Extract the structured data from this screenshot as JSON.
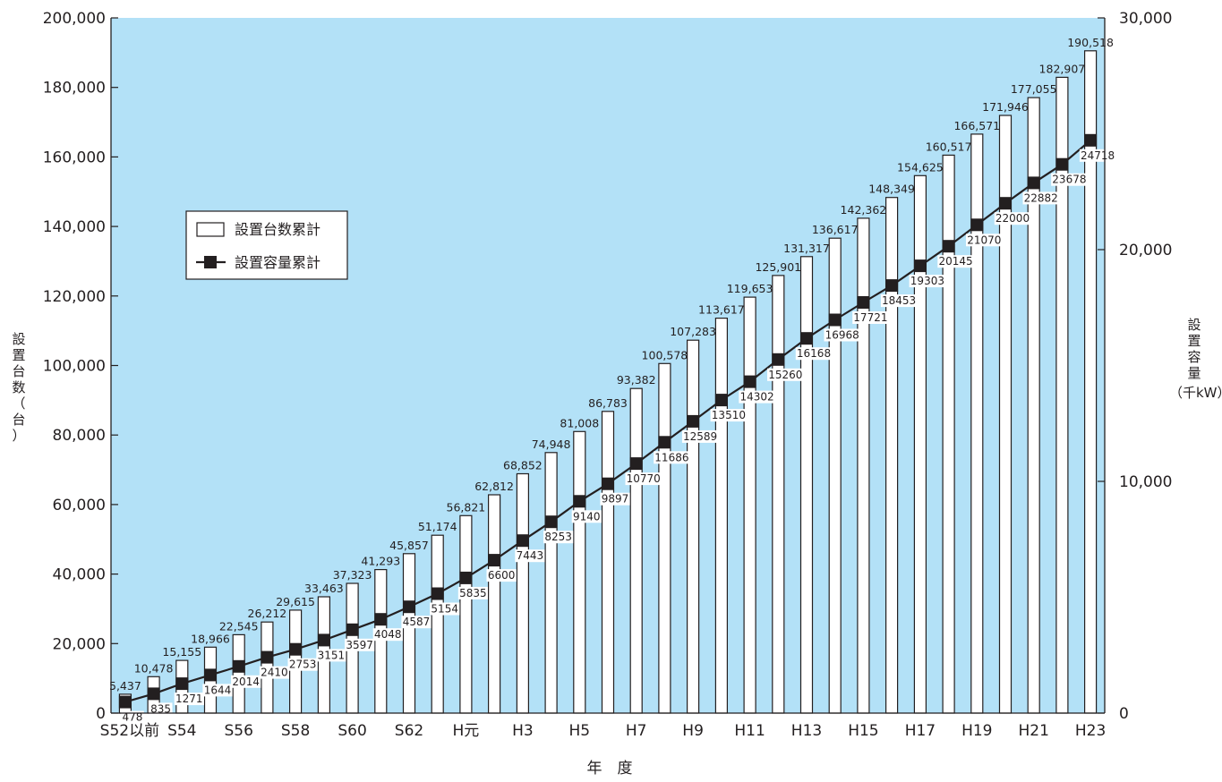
{
  "chart_data": {
    "type": "bar",
    "title": "",
    "xlabel": "年　度",
    "ylabel_left": "設置台数（台）",
    "ylabel_right": "設置容量（千kW）",
    "ylim_left": [
      0,
      200000
    ],
    "ylim_right": [
      0,
      30000
    ],
    "yticks_left": [
      "0",
      "20,000",
      "40,000",
      "60,000",
      "80,000",
      "100,000",
      "120,000",
      "140,000",
      "160,000",
      "180,000",
      "200,000"
    ],
    "yticks_right": [
      "0",
      "10,000",
      "20,000",
      "30,000"
    ],
    "xtick_labels": [
      "S52以前",
      "S54",
      "S56",
      "S58",
      "S60",
      "S62",
      "H元",
      "H3",
      "H5",
      "H7",
      "H9",
      "H11",
      "H13",
      "H15",
      "H17",
      "H19",
      "H21",
      "H23"
    ],
    "categories": [
      "S52以前",
      "S53",
      "S54",
      "S55",
      "S56",
      "S57",
      "S58",
      "S59",
      "S60",
      "S61",
      "S62",
      "S63",
      "H元",
      "H2",
      "H3",
      "H4",
      "H5",
      "H6",
      "H7",
      "H8",
      "H9",
      "H10",
      "H11",
      "H12",
      "H13",
      "H14",
      "H15",
      "H16",
      "H17",
      "H18",
      "H19",
      "H20",
      "H21",
      "H22",
      "H23"
    ],
    "series": [
      {
        "name": "設置台数累計",
        "type": "bar",
        "axis": "left",
        "values": [
          5437,
          10478,
          15155,
          18966,
          22545,
          26212,
          29615,
          33463,
          37323,
          41293,
          45857,
          51174,
          56821,
          62812,
          68852,
          74948,
          81008,
          86783,
          93382,
          100578,
          107283,
          113617,
          119653,
          125901,
          131317,
          136617,
          142362,
          148349,
          154625,
          160517,
          166571,
          171946,
          177055,
          182907,
          190518
        ],
        "labels": [
          "5,437",
          "10,478",
          "15,155",
          "18,966",
          "22,545",
          "26,212",
          "29,615",
          "33,463",
          "37,323",
          "41,293",
          "45,857",
          "51,174",
          "56,821",
          "62,812",
          "68,852",
          "74,948",
          "81,008",
          "86,783",
          "93,382",
          "100,578",
          "107,283",
          "113,617",
          "119,653",
          "125,901",
          "131,317",
          "136,617",
          "142,362",
          "148,349",
          "154,625",
          "160,517",
          "166,571",
          "171,946",
          "177,055",
          "182,907",
          "190,518"
        ]
      },
      {
        "name": "設置容量累計",
        "type": "line",
        "axis": "right",
        "values": [
          478,
          835,
          1271,
          1644,
          2014,
          2410,
          2753,
          3151,
          3597,
          4048,
          4587,
          5154,
          5835,
          6600,
          7443,
          8253,
          9140,
          9897,
          10770,
          11686,
          12589,
          13510,
          14302,
          15260,
          16168,
          16968,
          17721,
          18453,
          19303,
          20145,
          21070,
          22000,
          22882,
          23678,
          24718
        ],
        "labels": [
          "478",
          "835",
          "1271",
          "1644",
          "2014",
          "2410",
          "2753",
          "3151",
          "3597",
          "4048",
          "4587",
          "5154",
          "5835",
          "6600",
          "7443",
          "8253",
          "9140",
          "9897",
          "10770",
          "11686",
          "12589",
          "13510",
          "14302",
          "15260",
          "16168",
          "16968",
          "17721",
          "18453",
          "19303",
          "20145",
          "21070",
          "22000",
          "22882",
          "23678",
          "24718"
        ]
      }
    ],
    "grid": false,
    "legend_position": "upper-left",
    "colors": {
      "background": "#b3e1f7",
      "bar_fill": "#ffffff",
      "outline": "#231f20",
      "line": "#231f20",
      "marker": "#231f20"
    }
  }
}
